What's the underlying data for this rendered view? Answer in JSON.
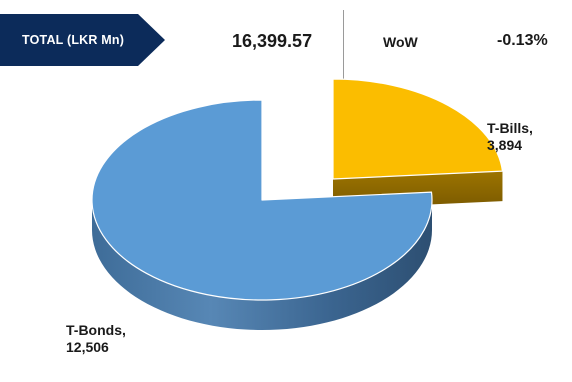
{
  "header": {
    "total_label": "TOTAL (LKR Mn)",
    "total_value": "16,399.57",
    "wow_label": "WoW",
    "wow_value": "-0.13%"
  },
  "chart_data": {
    "type": "pie",
    "style": "3d-exploded",
    "slices": [
      {
        "name": "T-Bills,",
        "value": 3894,
        "value_label": "3,894",
        "color": "#fbbd00"
      },
      {
        "name": "T-Bonds,",
        "value": 12506,
        "value_label": "12,506",
        "color": "#5b9bd5"
      }
    ]
  }
}
